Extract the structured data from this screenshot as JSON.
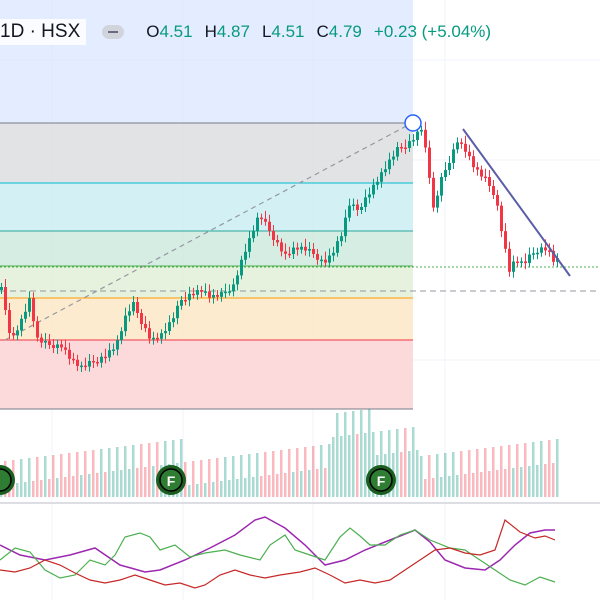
{
  "header": {
    "symbol": "1D · HSX",
    "o_label": "O",
    "o_value": "4.51",
    "h_label": "H",
    "h_value": "4.87",
    "l_label": "L",
    "l_value": "4.51",
    "c_label": "C",
    "c_value": "4.79",
    "change": "+0.23 (+5.04%)"
  },
  "colors": {
    "up": "#089981",
    "down": "#f23645",
    "fib_level_top": "#787b86",
    "fib_236": "#00bcd4",
    "fib_382": "#26a69a",
    "fib_500": "#4caf50",
    "fib_618": "#ff9800",
    "fib_786": "#f23645",
    "trendline": "#5b5ea6",
    "macd": "#9c27b0",
    "di_plus": "#4caf50",
    "di_minus": "#c62828"
  },
  "icons": {
    "event_marker": "F",
    "anchor": "circle-handle-icon"
  }
}
